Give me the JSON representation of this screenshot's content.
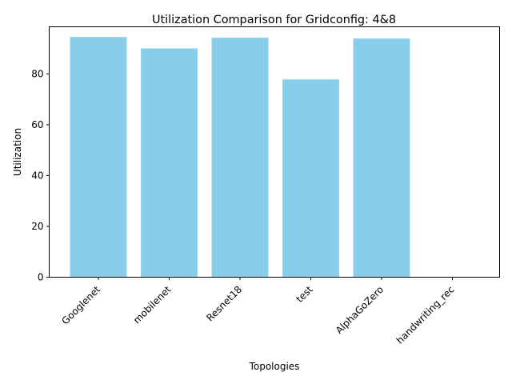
{
  "chart_data": {
    "type": "bar",
    "title": "Utilization Comparison for Gridconfig: 4&8",
    "xlabel": "Topologies",
    "ylabel": "Utilization",
    "categories": [
      "Googlenet",
      "mobilenet",
      "Resnet18",
      "test",
      "AlphaGoZero",
      "handwriting_rec"
    ],
    "values": [
      94.5,
      90.0,
      94.2,
      77.8,
      93.9,
      0
    ],
    "ylim": [
      0,
      98.5
    ],
    "yticks": [
      0,
      20,
      40,
      60,
      80
    ],
    "xtick_rotation": "45-degrees",
    "grid": false,
    "legend": "none",
    "bar_color": "#87ceeb"
  }
}
